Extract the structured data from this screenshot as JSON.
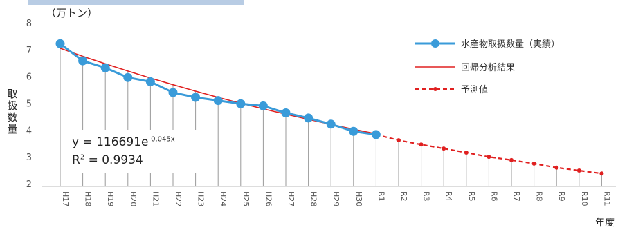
{
  "chart_data": {
    "type": "line",
    "yunit": "（万トン）",
    "ylabel": "取扱数量",
    "xlabel": "年度",
    "ylim": [
      2,
      8
    ],
    "yticks": [
      2,
      3,
      4,
      5,
      6,
      7,
      8
    ],
    "categories": [
      "H17",
      "H18",
      "H19",
      "H20",
      "H21",
      "H22",
      "H23",
      "H24",
      "H25",
      "H26",
      "H27",
      "H28",
      "H29",
      "H30",
      "R1",
      "R2",
      "R3",
      "R4",
      "R5",
      "R6",
      "R7",
      "R8",
      "R9",
      "R10",
      "R11"
    ],
    "series": [
      {
        "name": "水産物取扱数量（実績）",
        "color": "#3a9bd9",
        "values": [
          7.22,
          6.58,
          6.32,
          5.96,
          5.8,
          5.4,
          5.22,
          5.1,
          4.98,
          4.9,
          4.64,
          4.45,
          4.22,
          3.95,
          3.83,
          null,
          null,
          null,
          null,
          null,
          null,
          null,
          null,
          null,
          null
        ]
      },
      {
        "name": "回帰分析結果",
        "color": "#e02020",
        "values": [
          7.05,
          6.75,
          6.47,
          6.2,
          5.94,
          5.69,
          5.45,
          5.22,
          5.0,
          4.79,
          4.59,
          4.4,
          4.21,
          4.03,
          3.86,
          null,
          null,
          null,
          null,
          null,
          null,
          null,
          null,
          null,
          null
        ]
      },
      {
        "name": "予測値",
        "color": "#e02020",
        "values": [
          null,
          null,
          null,
          null,
          null,
          null,
          null,
          null,
          null,
          null,
          null,
          null,
          null,
          null,
          3.83,
          3.62,
          3.46,
          3.31,
          3.16,
          3.0,
          2.88,
          2.75,
          2.6,
          2.49,
          2.38
        ]
      }
    ],
    "equation": "y = 116691e",
    "equation_exp": "-0.045x",
    "r2_label": "R",
    "r2_value": " = 0.9934",
    "grid": "vertical drop lines"
  }
}
